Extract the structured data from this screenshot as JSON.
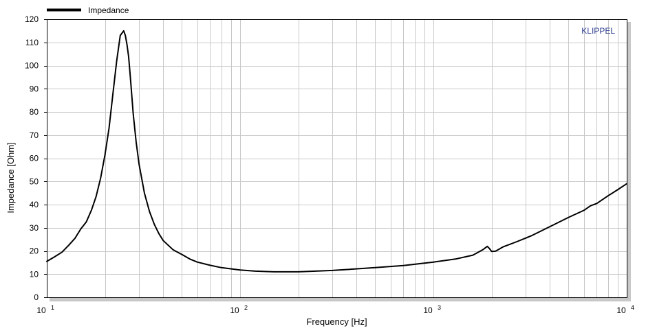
{
  "chart_data": {
    "type": "line",
    "title": "",
    "xlabel": "Frequency  [Hz]",
    "ylabel": "Impedance  [Ohm]",
    "x_scale": "log",
    "xlim": [
      10,
      10000
    ],
    "ylim": [
      0,
      120
    ],
    "grid": true,
    "legend_position": "top-left",
    "brand_label": "KLIPPEL",
    "colors": {
      "series": "#000000",
      "grid": "#c8c8c8",
      "frame_shadow": "#c8c8c8",
      "brand": "#2e3f8f"
    },
    "y_ticks": [
      "0",
      "10",
      "20",
      "30",
      "40",
      "50",
      "60",
      "70",
      "80",
      "90",
      "100",
      "110",
      "120"
    ],
    "x_ticks": [
      {
        "value": 10,
        "base": "10",
        "exp": "1"
      },
      {
        "value": 100,
        "base": "10",
        "exp": "2"
      },
      {
        "value": 1000,
        "base": "10",
        "exp": "3"
      },
      {
        "value": 10000,
        "base": "10",
        "exp": "4"
      }
    ],
    "series": [
      {
        "name": "Impedance",
        "x": [
          10,
          11,
          12,
          13,
          14,
          15,
          16,
          17,
          18,
          19,
          20,
          21,
          22,
          23,
          24,
          25,
          25.5,
          26,
          26.5,
          27,
          28,
          29,
          30,
          32,
          34,
          36,
          38,
          40,
          45,
          50,
          55,
          60,
          70,
          80,
          100,
          120,
          150,
          200,
          300,
          500,
          700,
          1000,
          1300,
          1600,
          1800,
          1900,
          1950,
          2000,
          2100,
          2300,
          2700,
          3200,
          4000,
          5000,
          6000,
          6500,
          7000,
          8000,
          9000,
          10000
        ],
        "y": [
          15.5,
          17.5,
          19.5,
          22.5,
          25.5,
          29.5,
          32.5,
          37.5,
          43.5,
          51.5,
          61.5,
          73,
          88,
          102,
          113,
          115,
          113,
          109,
          104,
          96,
          79,
          67,
          57.5,
          45,
          37,
          31.5,
          27.5,
          24.5,
          20.5,
          18.5,
          16.5,
          15.2,
          13.8,
          12.8,
          11.8,
          11.3,
          11,
          11,
          11.6,
          12.8,
          13.7,
          15.2,
          16.5,
          18.2,
          20.5,
          22,
          21,
          19.8,
          19.9,
          21.8,
          24,
          26.5,
          30.5,
          34.5,
          37.5,
          39.5,
          40.5,
          43.8,
          46.5,
          49
        ]
      }
    ]
  }
}
